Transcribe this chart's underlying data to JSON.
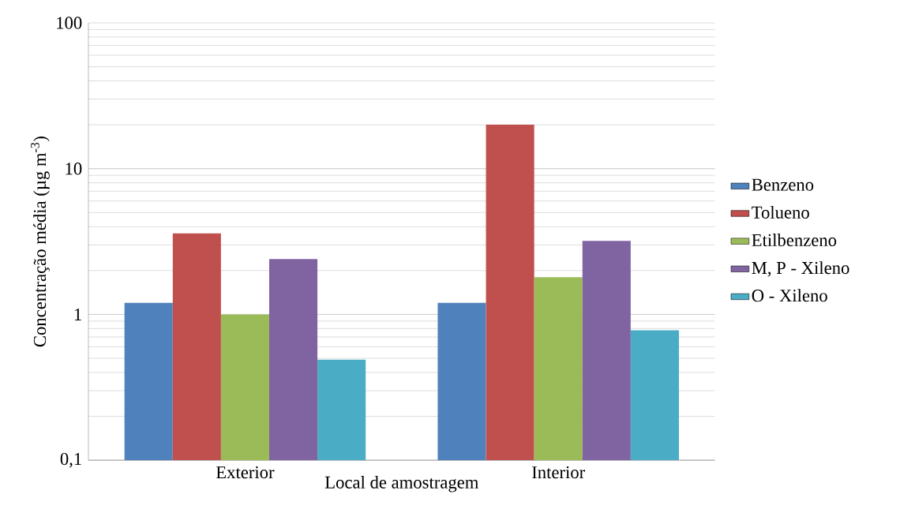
{
  "chart_data": {
    "type": "bar",
    "xlabel": "Local de amostragem",
    "ylabel": "Concentração média (µg m$^{-3}$)",
    "categories": [
      "Exterior",
      "Interior"
    ],
    "series": [
      {
        "name": "Benzeno",
        "color": "#4f81bd",
        "values": [
          1.2,
          1.2
        ]
      },
      {
        "name": "Tolueno",
        "color": "#c0504d",
        "values": [
          3.6,
          20
        ]
      },
      {
        "name": "Etilbenzeno",
        "color": "#9bbb59",
        "values": [
          1.0,
          1.8
        ]
      },
      {
        "name": "M, P - Xileno",
        "color": "#8064a2",
        "values": [
          2.4,
          3.2
        ]
      },
      {
        "name": "O - Xileno",
        "color": "#4bacc6",
        "values": [
          0.49,
          0.78
        ]
      }
    ],
    "log": "y",
    "ylim": [
      0.1,
      100
    ],
    "yticks": [
      {
        "value": 0.1,
        "label": "0,1"
      },
      1,
      10,
      100
    ],
    "grid": "y",
    "legend": "right"
  }
}
